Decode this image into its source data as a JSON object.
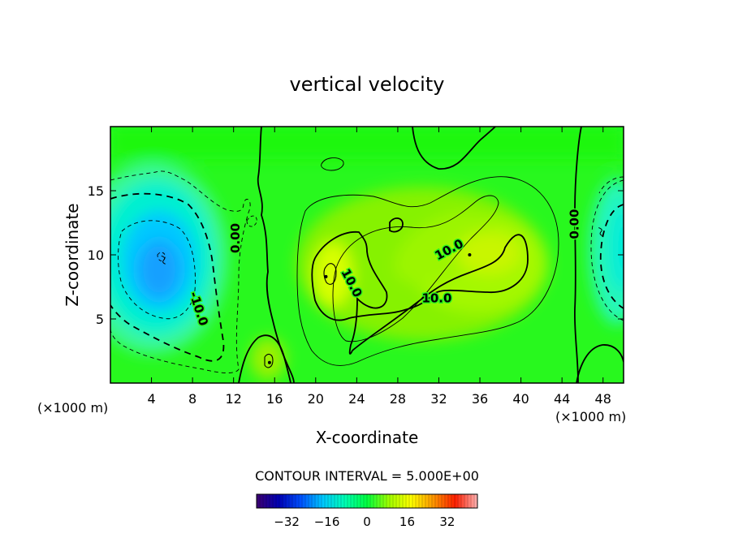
{
  "chart_data": {
    "type": "heatmap",
    "title": "vertical velocity",
    "xlabel": "X-coordinate",
    "ylabel": "Z-coordinate",
    "x_unit": "(×1000 m)",
    "y_unit": "(×1000 m)",
    "xlim": [
      0,
      50
    ],
    "ylim": [
      0,
      20
    ],
    "x_ticks": [
      4,
      8,
      12,
      16,
      20,
      24,
      28,
      32,
      36,
      40,
      44,
      48
    ],
    "y_ticks": [
      5,
      10,
      15
    ],
    "contour_interval_text": "CONTOUR INTERVAL = 5.000E+00",
    "colorbar": {
      "min": -44,
      "max": 44,
      "ticks": [
        -32,
        -16,
        0,
        16,
        32
      ],
      "tick_labels": [
        "−32",
        "−16",
        "0",
        "16",
        "32"
      ],
      "colors": [
        "#3c0070",
        "#0000b4",
        "#0050ff",
        "#00c8ff",
        "#00ffb4",
        "#00ff40",
        "#a0ff00",
        "#ffff00",
        "#ff9600",
        "#ff1e00",
        "#ffb4b4"
      ]
    },
    "contour_labels": [
      {
        "text": "0.00",
        "x": 12.2,
        "y": 11.3,
        "angle": -90
      },
      {
        "text": "-10.0",
        "x": 8.6,
        "y": 5.8,
        "angle": 72
      },
      {
        "text": "10.0",
        "x": 23.5,
        "y": 7.8,
        "angle": 62
      },
      {
        "text": "10.0",
        "x": 33.0,
        "y": 10.4,
        "angle": -28
      },
      {
        "text": "10.0",
        "x": 31.8,
        "y": 6.6,
        "angle": 0
      },
      {
        "text": "0.00",
        "x": 45.2,
        "y": 12.4,
        "angle": -90
      }
    ],
    "features": [
      {
        "kind": "min",
        "x": 5.2,
        "y": 9.6,
        "value": -25
      },
      {
        "kind": "min",
        "x": 47.8,
        "y": 11.8,
        "value": -12
      },
      {
        "kind": "max",
        "x": 21.0,
        "y": 8.3,
        "value": 14
      },
      {
        "kind": "max",
        "x": 35.0,
        "y": 10.0,
        "value": 12
      },
      {
        "kind": "max",
        "x": 15.5,
        "y": 1.6,
        "value": 10
      }
    ]
  }
}
